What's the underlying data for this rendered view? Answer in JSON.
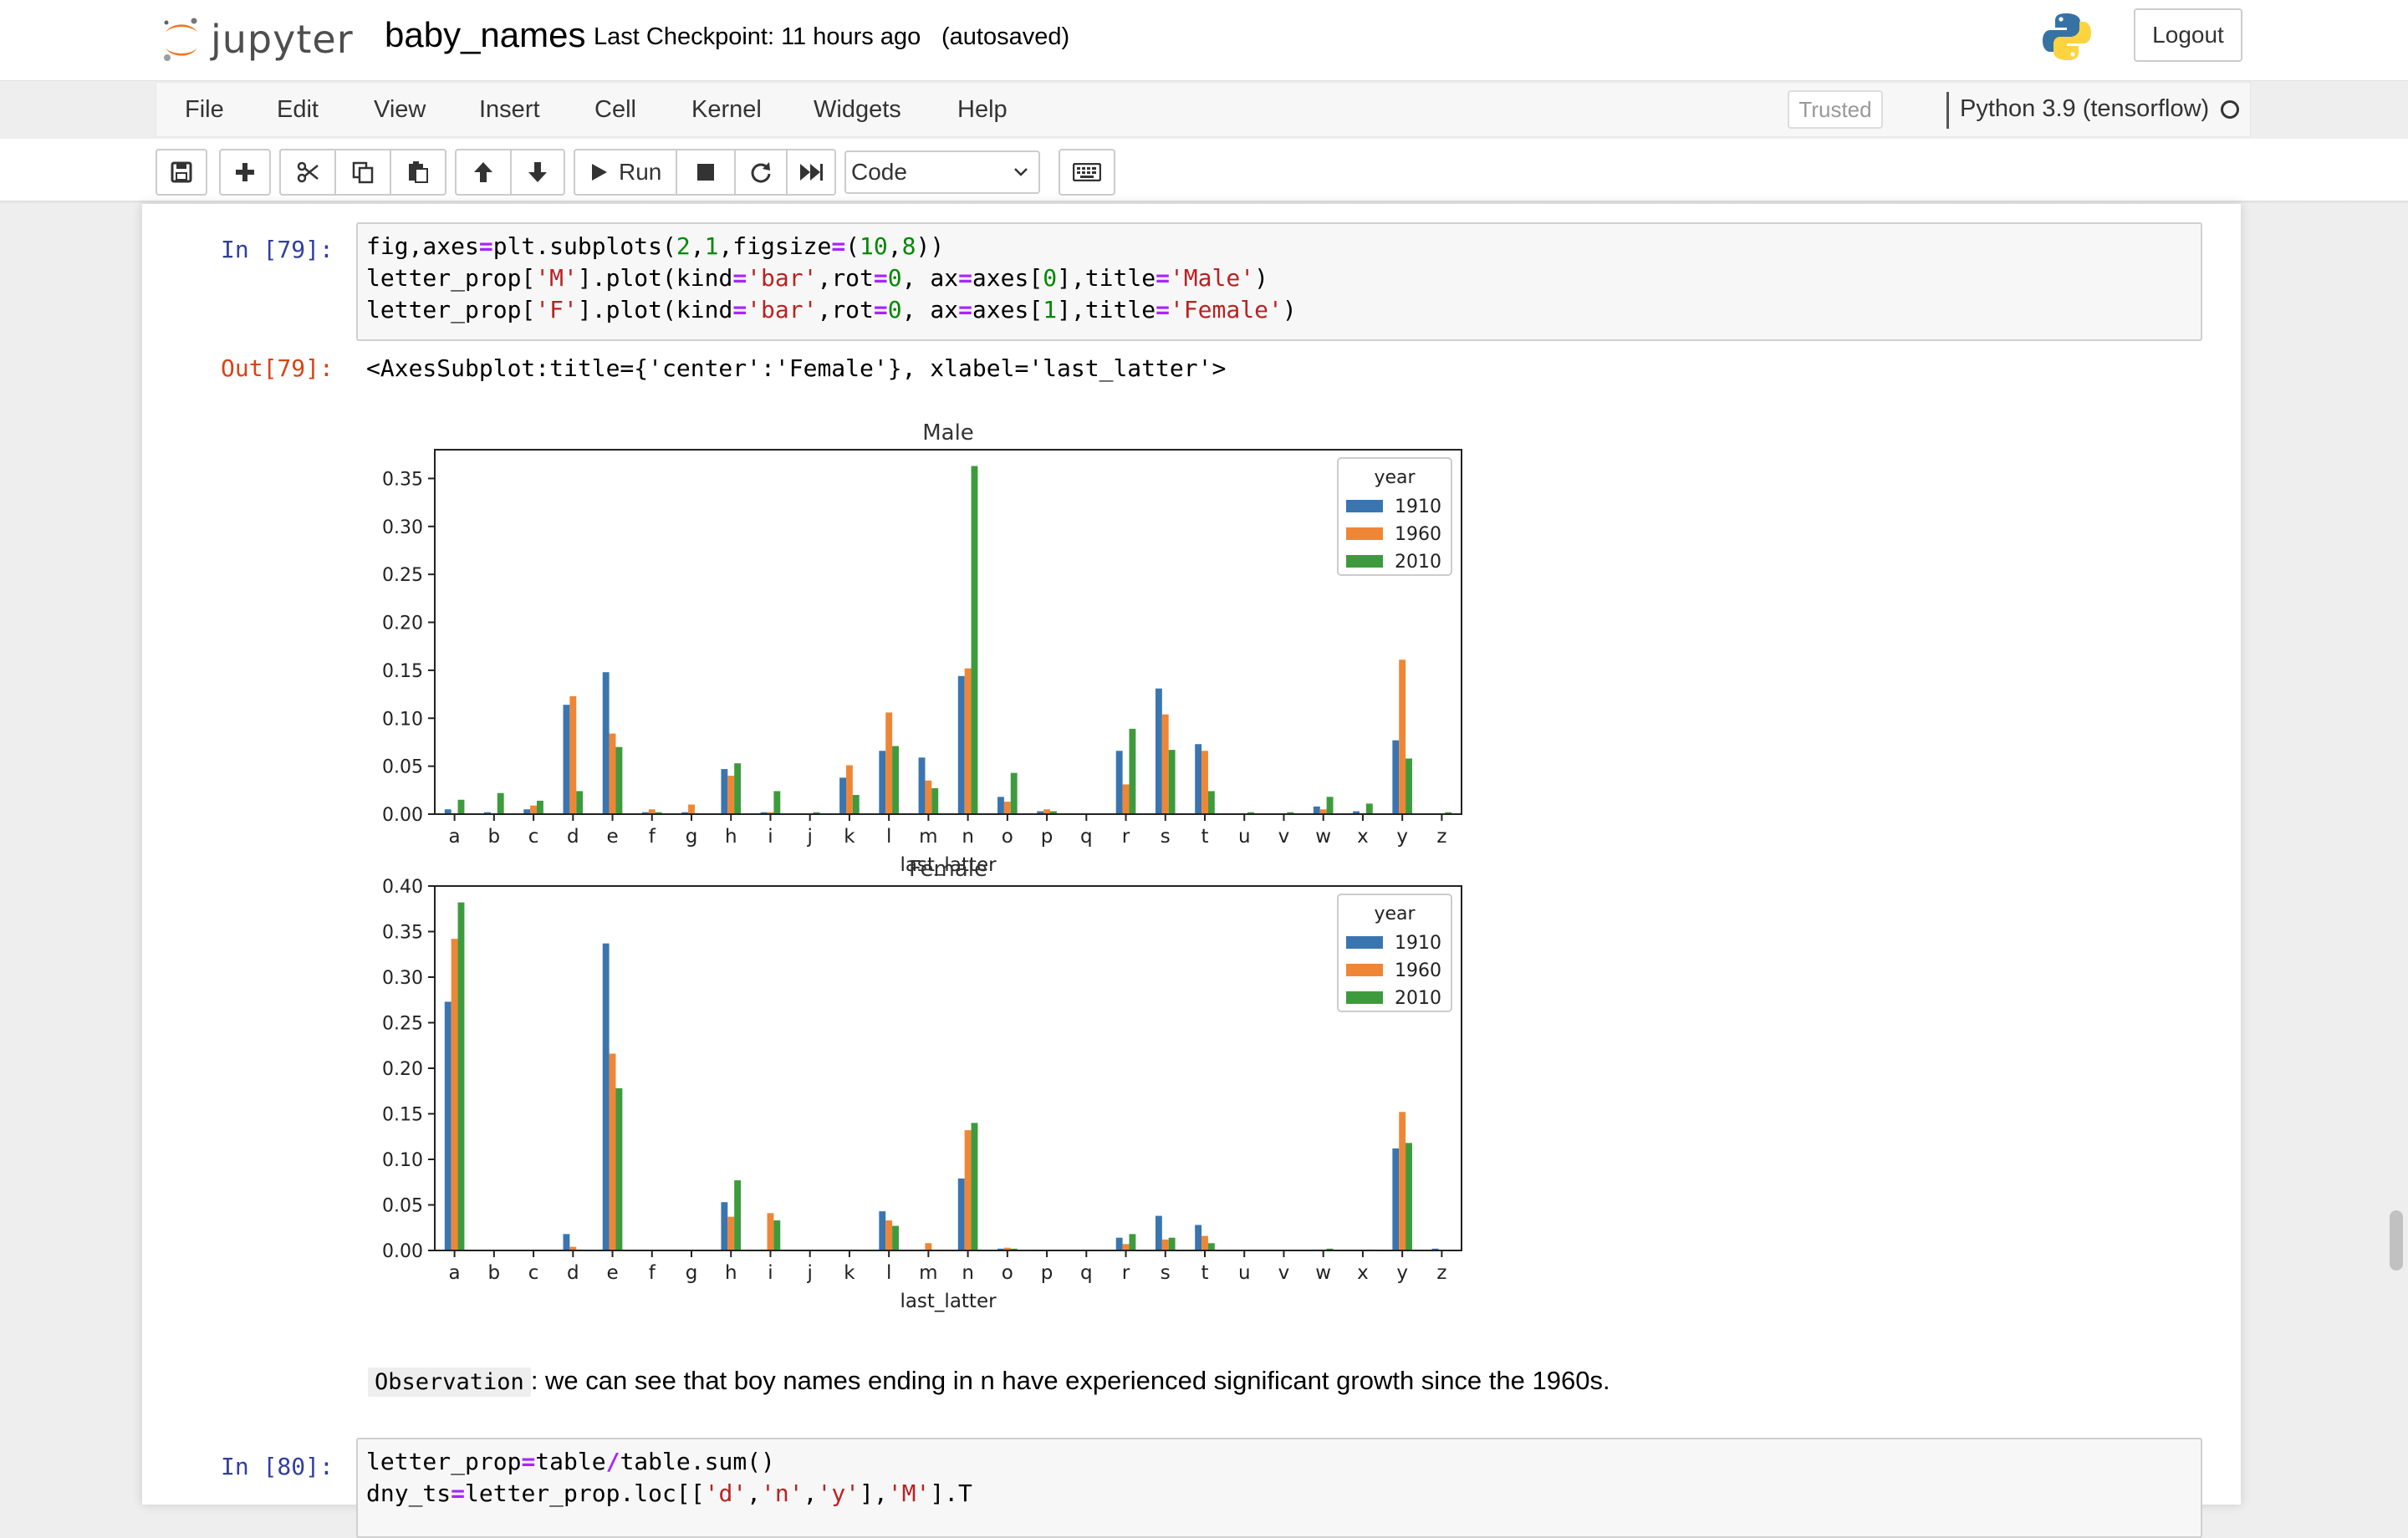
{
  "header": {
    "logo_text": "jupyter",
    "notebook_name": "baby_names",
    "checkpoint": "Last Checkpoint: 11 hours ago",
    "autosaved": "(autosaved)",
    "logout_label": "Logout"
  },
  "menu": {
    "items": [
      "File",
      "Edit",
      "View",
      "Insert",
      "Cell",
      "Kernel",
      "Widgets",
      "Help"
    ],
    "trusted": "Trusted",
    "kernel_name": "Python 3.9 (tensorflow)"
  },
  "toolbar": {
    "buttons": [
      "save-icon",
      "plus-icon",
      "cut-icon",
      "copy-icon",
      "paste-icon",
      "arrow-up-icon",
      "arrow-down-icon",
      "run-button",
      "stop-icon",
      "restart-icon",
      "fast-forward-icon",
      "keyboard-icon"
    ],
    "run_label": "Run",
    "cell_type": "Code"
  },
  "cells": {
    "in79_prompt": "In [79]:",
    "in79_code": [
      "fig,axes=plt.subplots(2,1,figsize=(10,8))",
      "letter_prop['M'].plot(kind='bar',rot=0, ax=axes[0],title='Male')",
      "letter_prop['F'].plot(kind='bar',rot=0, ax=axes[1],title='Female')"
    ],
    "out79_prompt": "Out[79]:",
    "out79_text": "<AxesSubplot:title={'center':'Female'}, xlabel='last_latter'>",
    "md_code": "Observation",
    "md_text": ": we can see that boy names ending in n have experienced significant growth since the 1960s.",
    "in80_prompt": "In [80]:",
    "in80_code": [
      "letter_prop=table/table.sum()",
      "dny_ts=letter_prop.loc[['d','n','y'],'M'].T"
    ]
  },
  "chart_data": [
    {
      "type": "bar",
      "title": "Male",
      "xlabel": "last_latter",
      "ylabel": "",
      "legend_title": "year",
      "legend_position": "top-right",
      "categories": [
        "a",
        "b",
        "c",
        "d",
        "e",
        "f",
        "g",
        "h",
        "i",
        "j",
        "k",
        "l",
        "m",
        "n",
        "o",
        "p",
        "q",
        "r",
        "s",
        "t",
        "u",
        "v",
        "w",
        "x",
        "y",
        "z"
      ],
      "series": [
        {
          "name": "1910",
          "color": "#3a75b0",
          "values": [
            0.005,
            0.002,
            0.005,
            0.114,
            0.148,
            0.002,
            0.002,
            0.047,
            0.002,
            0.0,
            0.038,
            0.066,
            0.059,
            0.144,
            0.018,
            0.003,
            0.0,
            0.066,
            0.131,
            0.073,
            0.0,
            0.0,
            0.008,
            0.003,
            0.077,
            0.0
          ]
        },
        {
          "name": "1960",
          "color": "#ef8636",
          "values": [
            0.001,
            0.001,
            0.009,
            0.123,
            0.084,
            0.005,
            0.01,
            0.04,
            0.002,
            0.0,
            0.051,
            0.106,
            0.035,
            0.152,
            0.013,
            0.005,
            0.0,
            0.031,
            0.104,
            0.066,
            0.0,
            0.0,
            0.005,
            0.001,
            0.161,
            0.0
          ]
        },
        {
          "name": "2010",
          "color": "#3d9b3d",
          "values": [
            0.015,
            0.022,
            0.014,
            0.024,
            0.07,
            0.002,
            0.001,
            0.053,
            0.024,
            0.002,
            0.02,
            0.071,
            0.027,
            0.363,
            0.043,
            0.003,
            0.0,
            0.089,
            0.067,
            0.024,
            0.002,
            0.002,
            0.018,
            0.011,
            0.058,
            0.002
          ]
        }
      ],
      "yticks": [
        0.0,
        0.05,
        0.1,
        0.15,
        0.2,
        0.25,
        0.3,
        0.35
      ],
      "ytick_labels": [
        "0.00",
        "0.05",
        "0.10",
        "0.15",
        "0.20",
        "0.25",
        "0.30",
        "0.35"
      ],
      "ylim": [
        0,
        0.38
      ]
    },
    {
      "type": "bar",
      "title": "Female",
      "xlabel": "last_latter",
      "ylabel": "",
      "legend_title": "year",
      "legend_position": "top-right",
      "categories": [
        "a",
        "b",
        "c",
        "d",
        "e",
        "f",
        "g",
        "h",
        "i",
        "j",
        "k",
        "l",
        "m",
        "n",
        "o",
        "p",
        "q",
        "r",
        "s",
        "t",
        "u",
        "v",
        "w",
        "x",
        "y",
        "z"
      ],
      "series": [
        {
          "name": "1910",
          "color": "#3a75b0",
          "values": [
            0.273,
            0.0,
            0.0,
            0.018,
            0.337,
            0.0,
            0.0,
            0.053,
            0.001,
            0.0,
            0.0,
            0.043,
            0.001,
            0.079,
            0.002,
            0.0,
            0.0,
            0.014,
            0.038,
            0.028,
            0.0,
            0.0,
            0.001,
            0.0,
            0.112,
            0.002
          ]
        },
        {
          "name": "1960",
          "color": "#ef8636",
          "values": [
            0.342,
            0.0,
            0.0,
            0.004,
            0.216,
            0.0,
            0.0,
            0.037,
            0.041,
            0.0,
            0.0,
            0.033,
            0.008,
            0.132,
            0.003,
            0.0,
            0.0,
            0.007,
            0.012,
            0.016,
            0.0,
            0.0,
            0.001,
            0.0,
            0.152,
            0.0
          ]
        },
        {
          "name": "2010",
          "color": "#3d9b3d",
          "values": [
            0.382,
            0.0,
            0.0,
            0.001,
            0.178,
            0.0,
            0.0,
            0.077,
            0.033,
            0.0,
            0.001,
            0.027,
            0.0,
            0.14,
            0.002,
            0.0,
            0.0,
            0.018,
            0.014,
            0.008,
            0.0,
            0.0,
            0.002,
            0.001,
            0.118,
            0.0
          ]
        }
      ],
      "yticks": [
        0.0,
        0.05,
        0.1,
        0.15,
        0.2,
        0.25,
        0.3,
        0.35,
        0.4
      ],
      "ytick_labels": [
        "0.00",
        "0.05",
        "0.10",
        "0.15",
        "0.20",
        "0.25",
        "0.30",
        "0.35",
        "0.40"
      ],
      "ylim": [
        0,
        0.4
      ]
    }
  ]
}
